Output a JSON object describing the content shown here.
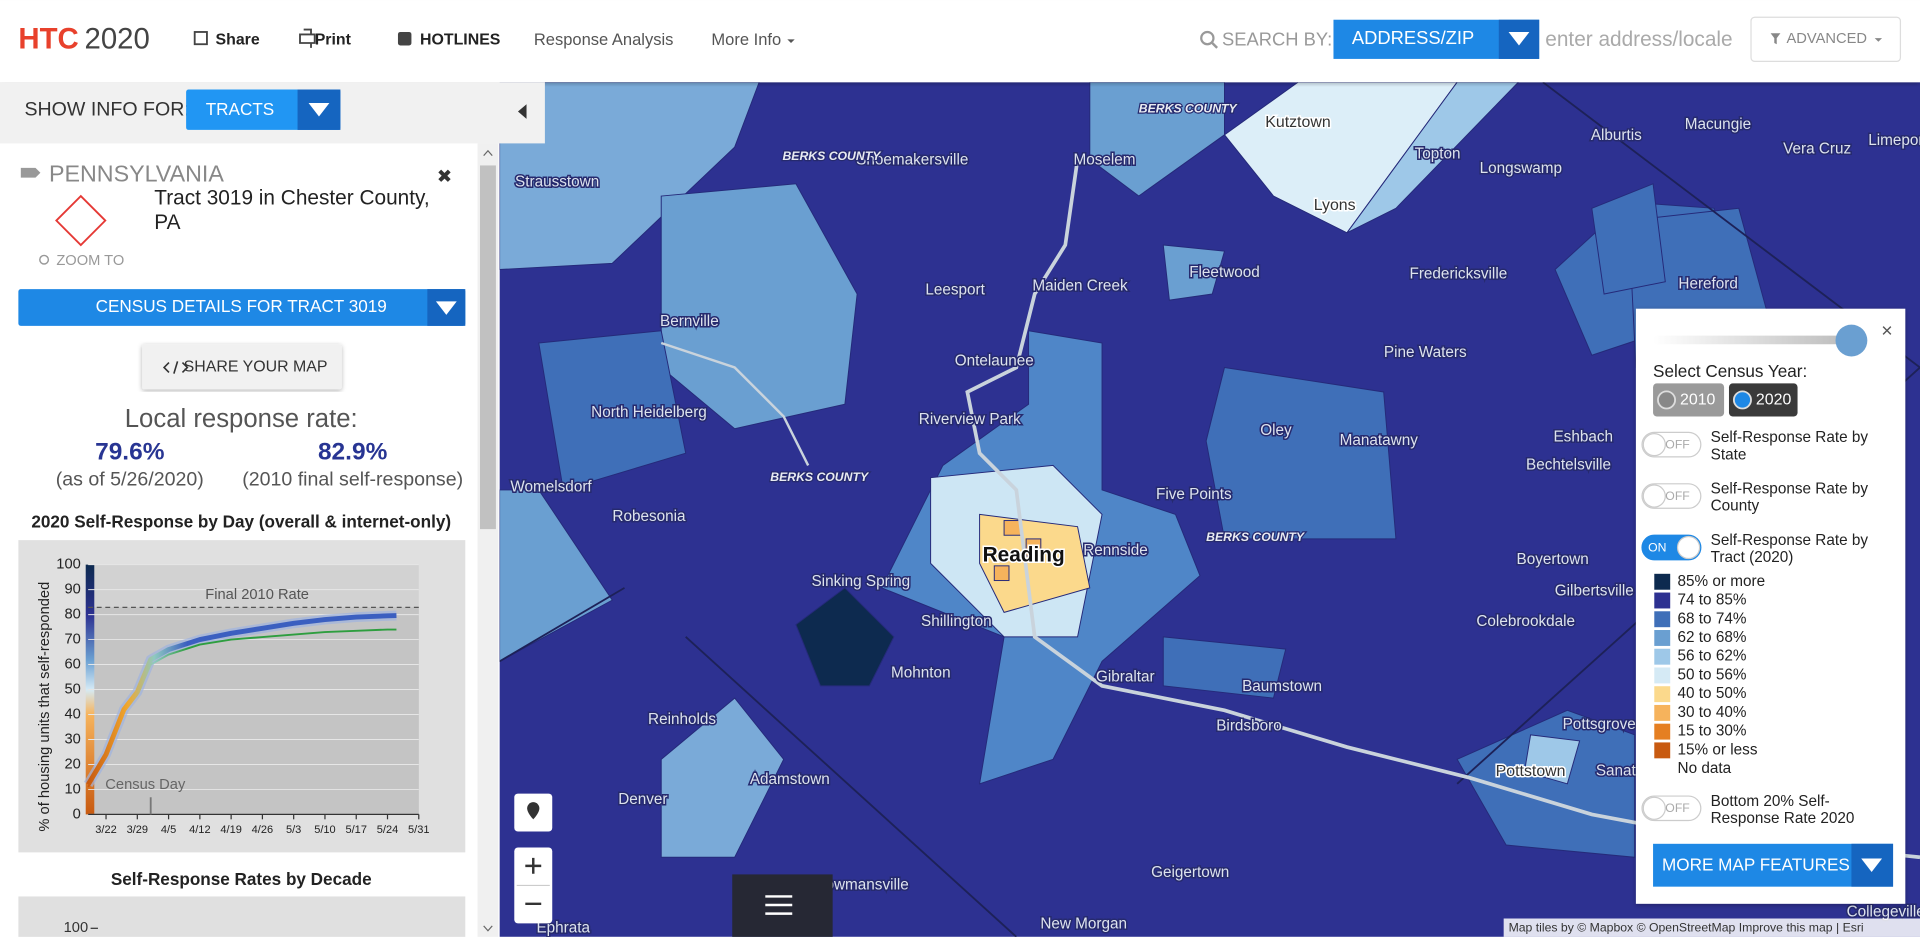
{
  "header": {
    "logo": {
      "brand": "HTC",
      "year": "2020"
    },
    "nav": [
      "Share",
      "Print",
      "HOTLINES",
      "Response Analysis",
      "More Info"
    ],
    "search": {
      "label": "SEARCH BY:",
      "mode": "ADDRESS/ZIP",
      "placeholder": "enter address/locale",
      "advanced": "ADVANCED"
    }
  },
  "sidebar": {
    "show_info": {
      "label": "SHOW INFO FOR:",
      "value": "TRACTS"
    },
    "state": "PENNSYLVANIA",
    "tract": "Tract 3019 in Chester County, PA",
    "zoom": "ZOOM TO",
    "details_button": "CENSUS DETAILS FOR TRACT 3019",
    "share_button": "SHARE YOUR MAP",
    "response": {
      "title": "Local response rate:",
      "current": "79.6%",
      "current_note": "(as of 5/26/2020)",
      "final_2010": "82.9%",
      "final_2010_note": "(2010 final self-response)"
    },
    "decade": {
      "title": "Self-Response Rates by Decade",
      "ytick": "100"
    }
  },
  "chart_data": {
    "type": "line",
    "title": "2020 Self-Response by Day (overall & internet-only)",
    "y_label": "% of housing units that self-responded",
    "x": [
      "3/18",
      "3/20",
      "3/22",
      "3/26",
      "3/29",
      "4/1",
      "4/5",
      "4/12",
      "4/19",
      "4/26",
      "5/3",
      "5/10",
      "5/17",
      "5/24",
      "5/26"
    ],
    "series": [
      {
        "color": "#3b5fc0",
        "values": [
          12,
          18,
          24,
          42,
          49,
          62,
          66,
          70,
          72.5,
          74.5,
          76.5,
          78,
          79,
          79.5,
          79.6
        ]
      },
      {
        "color": "#2e9e3f",
        "values": [
          11,
          17,
          23,
          41,
          48,
          60,
          64,
          68,
          70,
          71,
          72,
          73,
          73.5,
          74,
          74
        ]
      }
    ],
    "xlim": [
      "3/18",
      "5/31"
    ],
    "xticks": [
      "3/22",
      "3/29",
      "4/5",
      "4/12",
      "4/19",
      "4/26",
      "5/3",
      "5/10",
      "5/17",
      "5/24",
      "5/31"
    ],
    "ylim": [
      0,
      100
    ],
    "yticks": [
      0,
      10,
      20,
      30,
      40,
      50,
      60,
      70,
      80,
      90,
      100
    ],
    "reference_line": {
      "label": "Final 2010 Rate",
      "value": 82.9
    },
    "marker": {
      "label": "Census Day",
      "x": "4/1"
    }
  },
  "map": {
    "places": [
      "Kutztown",
      "Shoemakersville",
      "Moselem",
      "Strausstown",
      "Topton",
      "Longswamp",
      "Alburtis",
      "Macungie",
      "Vera Cruz",
      "Lyons",
      "Fleetwood",
      "Fredericksville",
      "Hereford",
      "Leesport",
      "Maiden Creek",
      "Bernville",
      "Pine Waters",
      "Ontelaunee",
      "North Heidelberg",
      "Riverview Park",
      "Oley",
      "Manatawny",
      "Eshbach",
      "Bechtelsville",
      "Womelsdorf",
      "Robesonia",
      "Five Points",
      "Reading",
      "Rennside",
      "Boyertown",
      "Sinking Spring",
      "Gilbertsville",
      "Shillington",
      "Colebrookdale",
      "Mohnton",
      "Gibraltar",
      "Baumstown",
      "Reinholds",
      "Birdsboro",
      "Pottsgrove",
      "Adamstown",
      "Pottstown",
      "Denver",
      "Bowmansville",
      "Geigertown",
      "Ephrata",
      "New Morgan",
      "Limeport",
      "Sanatoga",
      "Collegeville"
    ],
    "county_labels": [
      "BERKS COUNTY",
      "BERKS COUNTY",
      "BERKS COUNTY",
      "BERKS COUNTY"
    ],
    "attribution": "Map tiles by © Mapbox © OpenStreetMap Improve this map | Esri"
  },
  "legend_panel": {
    "year_label": "Select Census Year:",
    "years": [
      "2010",
      "2020"
    ],
    "layers": [
      {
        "state": "OFF",
        "on": false,
        "label": "Self-Response Rate by State"
      },
      {
        "state": "OFF",
        "on": false,
        "label": "Self-Response Rate by County"
      },
      {
        "state": "ON",
        "on": true,
        "label": "Self-Response Rate by Tract (2020)"
      }
    ],
    "bins": [
      {
        "label": "85% or more",
        "color": "#0d2a4f"
      },
      {
        "label": "74 to 85%",
        "color": "#2d3191"
      },
      {
        "label": "68 to 74%",
        "color": "#3f6fb8"
      },
      {
        "label": "62 to 68%",
        "color": "#6a9fd1"
      },
      {
        "label": "56 to 62%",
        "color": "#9ec8e8"
      },
      {
        "label": "50 to 56%",
        "color": "#d5eaf5"
      },
      {
        "label": "40 to 50%",
        "color": "#fbd98c"
      },
      {
        "label": "30 to 40%",
        "color": "#f6b35c"
      },
      {
        "label": "15 to 30%",
        "color": "#e57f22"
      },
      {
        "label": "15% or less",
        "color": "#c85a10"
      },
      {
        "label": "No data"
      }
    ],
    "extra_layer": {
      "state": "OFF",
      "on": false,
      "label": "Bottom 20% Self-Response Rate 2020"
    },
    "button": "MORE MAP FEATURES"
  }
}
